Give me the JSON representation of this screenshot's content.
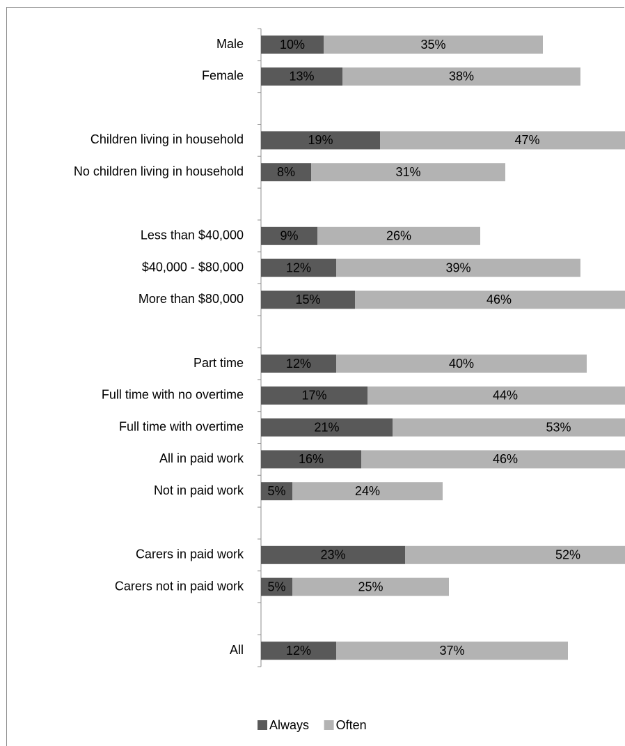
{
  "chart_data": {
    "type": "bar",
    "orientation": "horizontal",
    "stacked": true,
    "title": "",
    "xlabel": "",
    "ylabel": "",
    "categories": [
      "Male",
      "Female",
      "",
      "Children living in household",
      "No children living in household",
      "",
      "Less than $40,000",
      "$40,000 - $80,000",
      "More than $80,000",
      "",
      "Part time",
      "Full time with no overtime",
      "Full time with overtime",
      "All in paid work",
      "Not in paid work",
      "",
      "Carers in paid work",
      "Carers not in paid work",
      "",
      "All"
    ],
    "series": [
      {
        "name": "Always",
        "color": "#595959",
        "values": [
          10,
          13,
          null,
          19,
          8,
          null,
          9,
          12,
          15,
          null,
          12,
          17,
          21,
          16,
          5,
          null,
          23,
          5,
          null,
          12
        ],
        "labels": [
          "10%",
          "13%",
          "",
          "19%",
          "8%",
          "",
          "9%",
          "12%",
          "15%",
          "",
          "12%",
          "17%",
          "21%",
          "16%",
          "5%",
          "",
          "23%",
          "5%",
          "",
          "12%"
        ]
      },
      {
        "name": "Often",
        "color": "#b3b3b3",
        "values": [
          35,
          38,
          null,
          47,
          31,
          null,
          26,
          39,
          46,
          null,
          40,
          44,
          53,
          46,
          24,
          null,
          52,
          25,
          null,
          37
        ],
        "labels": [
          "35%",
          "38%",
          "",
          "47%",
          "31%",
          "",
          "26%",
          "39%",
          "46%",
          "",
          "40%",
          "44%",
          "53%",
          "46%",
          "24%",
          "",
          "52%",
          "25%",
          "",
          "37%"
        ]
      }
    ],
    "xlim": [
      0,
      75
    ],
    "axis_visible": false,
    "grid": false,
    "legend_position": "bottom",
    "legend": [
      {
        "label": "Always",
        "color": "#595959"
      },
      {
        "label": "Often",
        "color": "#b3b3b3"
      }
    ]
  }
}
